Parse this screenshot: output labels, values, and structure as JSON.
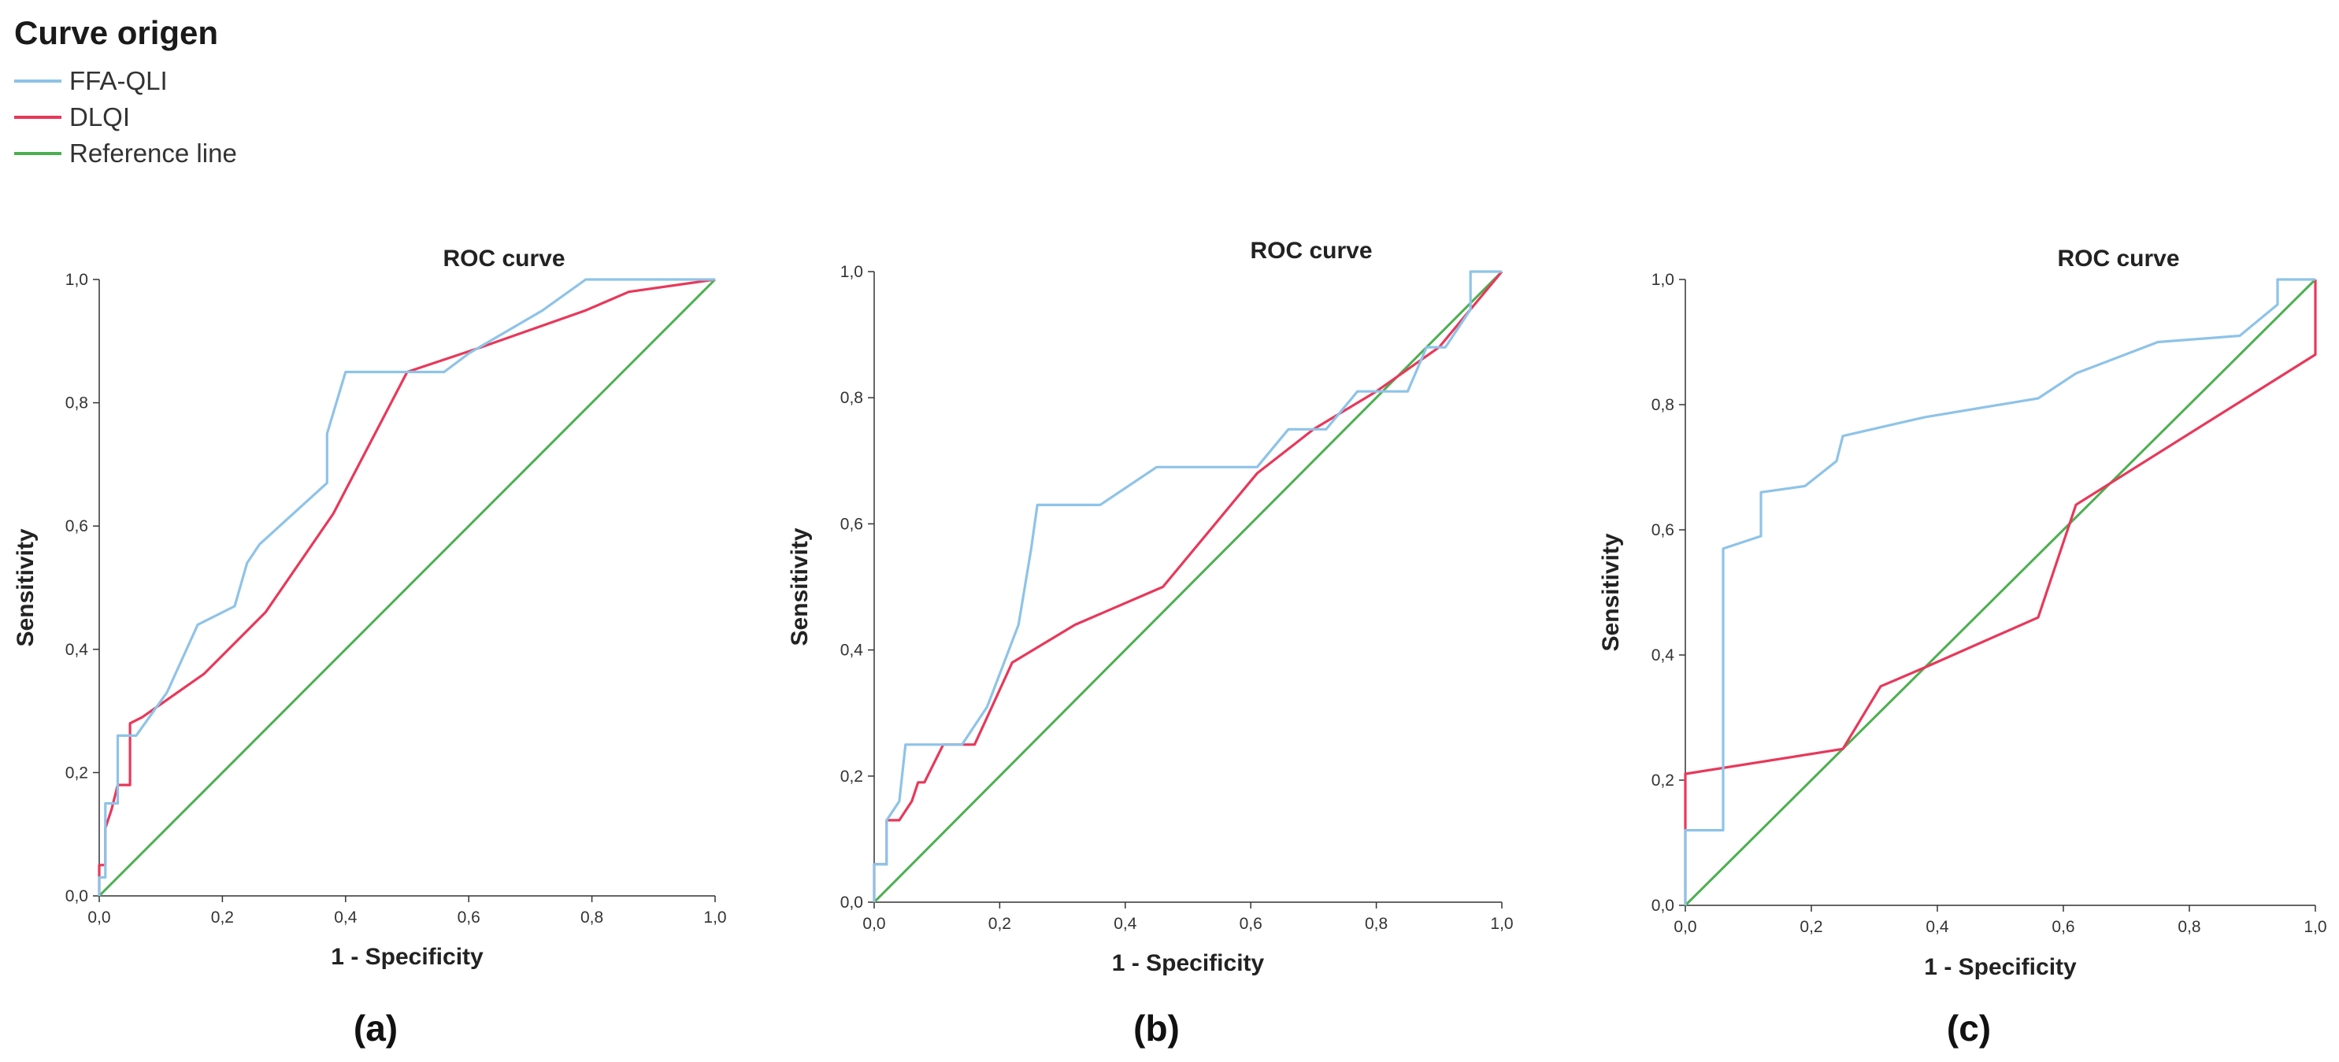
{
  "legend": {
    "title": "Curve origen",
    "items": [
      {
        "label": "FFA-QLI",
        "color": "#8ec3e8"
      },
      {
        "label": "DLQI",
        "color": "#e8385a"
      },
      {
        "label": "Reference line",
        "color": "#4caf50"
      }
    ]
  },
  "chart_data": [
    {
      "type": "line",
      "title": "ROC curve",
      "xlabel": "1 - Specificity",
      "ylabel": "Sensitivity",
      "caption": "(a)",
      "xlim": [
        0,
        1
      ],
      "ylim": [
        0,
        1
      ],
      "xticks": [
        "0,0",
        "0,2",
        "0,4",
        "0,6",
        "0,8",
        "1,0"
      ],
      "yticks": [
        "0,0",
        "0,2",
        "0,4",
        "0,6",
        "0,8",
        "1,0"
      ],
      "grid": false,
      "series": [
        {
          "name": "FFA-QLI",
          "points": [
            [
              0,
              0
            ],
            [
              0,
              0.03
            ],
            [
              0.01,
              0.03
            ],
            [
              0.01,
              0.15
            ],
            [
              0.02,
              0.15
            ],
            [
              0.03,
              0.15
            ],
            [
              0.03,
              0.26
            ],
            [
              0.06,
              0.26
            ],
            [
              0.11,
              0.33
            ],
            [
              0.16,
              0.44
            ],
            [
              0.22,
              0.47
            ],
            [
              0.24,
              0.54
            ],
            [
              0.26,
              0.57
            ],
            [
              0.37,
              0.67
            ],
            [
              0.37,
              0.75
            ],
            [
              0.4,
              0.85
            ],
            [
              0.56,
              0.85
            ],
            [
              0.6,
              0.88
            ],
            [
              0.72,
              0.95
            ],
            [
              0.79,
              1.0
            ],
            [
              1.0,
              1.0
            ]
          ]
        },
        {
          "name": "DLQI",
          "points": [
            [
              0,
              0
            ],
            [
              0,
              0.05
            ],
            [
              0.01,
              0.05
            ],
            [
              0.01,
              0.11
            ],
            [
              0.02,
              0.14
            ],
            [
              0.03,
              0.18
            ],
            [
              0.05,
              0.18
            ],
            [
              0.05,
              0.28
            ],
            [
              0.07,
              0.29
            ],
            [
              0.17,
              0.36
            ],
            [
              0.27,
              0.46
            ],
            [
              0.38,
              0.62
            ],
            [
              0.5,
              0.85
            ],
            [
              0.62,
              0.89
            ],
            [
              0.79,
              0.95
            ],
            [
              0.86,
              0.98
            ],
            [
              1.0,
              1.0
            ]
          ]
        },
        {
          "name": "Reference line",
          "points": [
            [
              0,
              0
            ],
            [
              1,
              1
            ]
          ]
        }
      ]
    },
    {
      "type": "line",
      "title": "ROC curve",
      "xlabel": "1 - Specificity",
      "ylabel": "Sensitivity",
      "caption": "(b)",
      "xlim": [
        0,
        1
      ],
      "ylim": [
        0,
        1
      ],
      "xticks": [
        "0,0",
        "0,2",
        "0,4",
        "0,6",
        "0,8",
        "1,0"
      ],
      "yticks": [
        "0,0",
        "0,2",
        "0,4",
        "0,6",
        "0,8",
        "1,0"
      ],
      "grid": false,
      "series": [
        {
          "name": "FFA-QLI",
          "points": [
            [
              0,
              0
            ],
            [
              0,
              0.06
            ],
            [
              0.02,
              0.06
            ],
            [
              0.02,
              0.13
            ],
            [
              0.04,
              0.16
            ],
            [
              0.05,
              0.25
            ],
            [
              0.14,
              0.25
            ],
            [
              0.18,
              0.31
            ],
            [
              0.23,
              0.44
            ],
            [
              0.25,
              0.56
            ],
            [
              0.26,
              0.63
            ],
            [
              0.36,
              0.63
            ],
            [
              0.45,
              0.69
            ],
            [
              0.61,
              0.69
            ],
            [
              0.66,
              0.75
            ],
            [
              0.72,
              0.75
            ],
            [
              0.77,
              0.81
            ],
            [
              0.85,
              0.81
            ],
            [
              0.88,
              0.88
            ],
            [
              0.91,
              0.88
            ],
            [
              0.95,
              0.94
            ],
            [
              0.95,
              1.0
            ],
            [
              1.0,
              1.0
            ]
          ]
        },
        {
          "name": "DLQI",
          "points": [
            [
              0,
              0
            ],
            [
              0,
              0.06
            ],
            [
              0.02,
              0.06
            ],
            [
              0.02,
              0.13
            ],
            [
              0.04,
              0.13
            ],
            [
              0.06,
              0.16
            ],
            [
              0.07,
              0.19
            ],
            [
              0.08,
              0.19
            ],
            [
              0.11,
              0.25
            ],
            [
              0.16,
              0.25
            ],
            [
              0.22,
              0.38
            ],
            [
              0.32,
              0.44
            ],
            [
              0.46,
              0.5
            ],
            [
              0.61,
              0.68
            ],
            [
              0.7,
              0.75
            ],
            [
              0.8,
              0.81
            ],
            [
              0.9,
              0.88
            ],
            [
              1.0,
              1.0
            ]
          ]
        },
        {
          "name": "Reference line",
          "points": [
            [
              0,
              0
            ],
            [
              1,
              1
            ]
          ]
        }
      ]
    },
    {
      "type": "line",
      "title": "ROC curve",
      "xlabel": "1 - Specificity",
      "ylabel": "Sensitivity",
      "caption": "(c)",
      "xlim": [
        0,
        1
      ],
      "ylim": [
        0,
        1
      ],
      "xticks": [
        "0,0",
        "0,2",
        "0,4",
        "0,6",
        "0,8",
        "1,0"
      ],
      "yticks": [
        "0,0",
        "0,2",
        "0,4",
        "0,6",
        "0,8",
        "1,0"
      ],
      "grid": false,
      "series": [
        {
          "name": "FFA-QLI",
          "points": [
            [
              0,
              0
            ],
            [
              0,
              0.12
            ],
            [
              0.06,
              0.12
            ],
            [
              0.06,
              0.57
            ],
            [
              0.12,
              0.59
            ],
            [
              0.12,
              0.66
            ],
            [
              0.19,
              0.67
            ],
            [
              0.24,
              0.71
            ],
            [
              0.25,
              0.75
            ],
            [
              0.38,
              0.78
            ],
            [
              0.56,
              0.81
            ],
            [
              0.62,
              0.85
            ],
            [
              0.75,
              0.9
            ],
            [
              0.88,
              0.91
            ],
            [
              0.94,
              0.96
            ],
            [
              0.94,
              1.0
            ],
            [
              1.0,
              1.0
            ]
          ]
        },
        {
          "name": "DLQI",
          "points": [
            [
              0,
              0
            ],
            [
              0,
              0.21
            ],
            [
              0.25,
              0.25
            ],
            [
              0.31,
              0.35
            ],
            [
              0.38,
              0.38
            ],
            [
              0.56,
              0.46
            ],
            [
              0.62,
              0.64
            ],
            [
              1.0,
              0.88
            ],
            [
              1.0,
              1.0
            ]
          ]
        },
        {
          "name": "Reference line",
          "points": [
            [
              0,
              0
            ],
            [
              1,
              1
            ]
          ]
        }
      ]
    }
  ]
}
